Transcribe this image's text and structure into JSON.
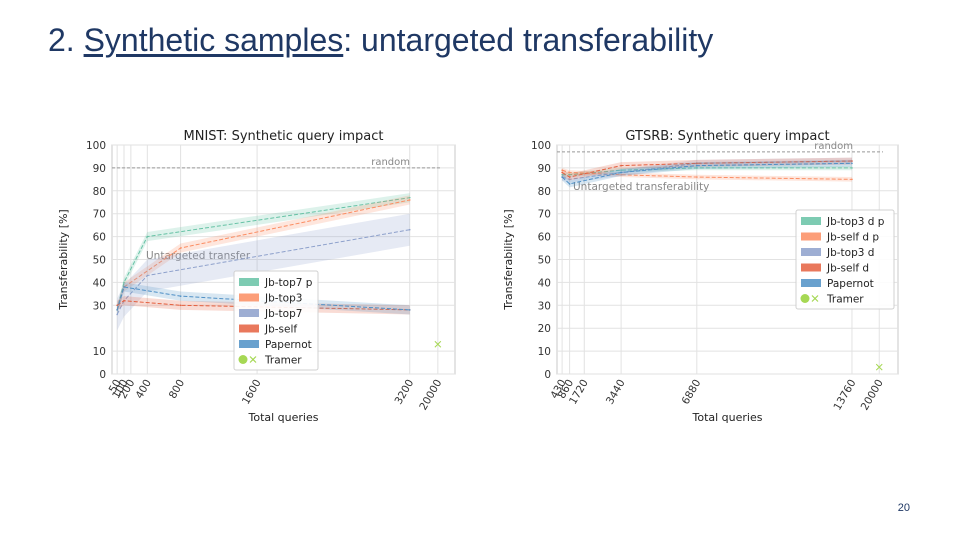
{
  "slide": {
    "title_prefix": "2. ",
    "title_link": "Synthetic samples",
    "title_suffix": ": untargeted transferability",
    "page_number": "20"
  },
  "chart_data": [
    {
      "id": "mnist",
      "type": "line",
      "title": "MNIST: Synthetic query impact",
      "xlabel": "Total queries",
      "ylabel": "Transferability [%]",
      "ylim": [
        0,
        100
      ],
      "yticks": [
        0,
        10,
        30,
        40,
        50,
        60,
        70,
        80,
        90,
        100
      ],
      "ytick_labels": [
        "0",
        "10",
        "30",
        "40",
        "50",
        "60",
        "70",
        "80",
        "90",
        "100"
      ],
      "x_order": [
        50,
        100,
        200,
        400,
        800,
        1600,
        3200,
        20000
      ],
      "xtick_labels": [
        "50",
        "100",
        "200",
        "400",
        "800",
        "1600",
        "3200",
        "20000"
      ],
      "grid": true,
      "legend_position": "bottom-center",
      "reference": {
        "label": "random",
        "value": 90
      },
      "annotation": "Untargeted transfer",
      "series": [
        {
          "name": "Jb-top7 p",
          "color": "#66c2a5",
          "x": [
            50,
            100,
            400,
            3200
          ],
          "values": [
            28,
            40,
            60,
            77
          ],
          "band": 2
        },
        {
          "name": "Jb-top3",
          "color": "#fc8d62",
          "x": [
            50,
            100,
            800,
            3200
          ],
          "values": [
            28,
            38,
            55,
            76
          ],
          "band": 2
        },
        {
          "name": "Jb-top7",
          "color": "#8da0cb",
          "x": [
            50,
            100,
            400,
            3200
          ],
          "values": [
            26,
            32,
            43,
            63
          ],
          "band": 7
        },
        {
          "name": "Jb-self",
          "color": "#e5603f",
          "x": [
            50,
            100,
            800,
            3200
          ],
          "values": [
            30,
            32,
            30,
            28
          ],
          "band": 2
        },
        {
          "name": "Papernot",
          "color": "#4f90c6",
          "x": [
            50,
            100,
            800,
            3200
          ],
          "values": [
            28,
            38,
            34,
            28
          ],
          "band": 2
        },
        {
          "name": "Tramer",
          "color": "#a6d854",
          "marker": true,
          "x": [
            20000
          ],
          "values": [
            13
          ]
        }
      ]
    },
    {
      "id": "gtsrb",
      "type": "line",
      "title": "GTSRB: Synthetic query impact",
      "xlabel": "Total queries",
      "ylabel": "Transferability [%]",
      "ylim": [
        0,
        100
      ],
      "yticks": [
        0,
        10,
        20,
        30,
        40,
        50,
        60,
        70,
        80,
        90,
        100
      ],
      "ytick_labels": [
        "0",
        "10",
        "20",
        "30",
        "40",
        "50",
        "60",
        "70",
        "80",
        "90",
        "100"
      ],
      "x_order": [
        430,
        860,
        1720,
        3440,
        6880,
        13760,
        20000
      ],
      "xtick_labels": [
        "430",
        "860",
        "1720",
        "3440",
        "6880",
        "13760",
        "20000"
      ],
      "grid": true,
      "legend_position": "top-right",
      "reference": {
        "label": "random",
        "value": 97
      },
      "annotation": "Untargeted transferability",
      "series": [
        {
          "name": "Jb-top3 d p",
          "color": "#66c2a5",
          "x": [
            430,
            860,
            3440,
            6880,
            13760
          ],
          "values": [
            87,
            87,
            89,
            90,
            90
          ],
          "band": 1
        },
        {
          "name": "Jb-self d p",
          "color": "#fc8d62",
          "x": [
            430,
            860,
            3440,
            6880,
            13760
          ],
          "values": [
            89,
            88,
            87,
            86,
            85
          ],
          "band": 1
        },
        {
          "name": "Jb-top3 d",
          "color": "#8da0cb",
          "x": [
            430,
            860,
            3440,
            6880,
            13760
          ],
          "values": [
            86,
            85,
            88,
            92,
            93
          ],
          "band": 1.5
        },
        {
          "name": "Jb-self d",
          "color": "#e5603f",
          "x": [
            430,
            860,
            3440,
            6880,
            13760
          ],
          "values": [
            88,
            86,
            91,
            92,
            93
          ],
          "band": 1.5
        },
        {
          "name": "Papernot",
          "color": "#4f90c6",
          "x": [
            430,
            860,
            3440,
            6880,
            13760
          ],
          "values": [
            86,
            83,
            88,
            91,
            92
          ],
          "band": 1.5
        },
        {
          "name": "Tramer",
          "color": "#a6d854",
          "marker": true,
          "x": [
            20000
          ],
          "values": [
            3
          ]
        }
      ]
    }
  ]
}
